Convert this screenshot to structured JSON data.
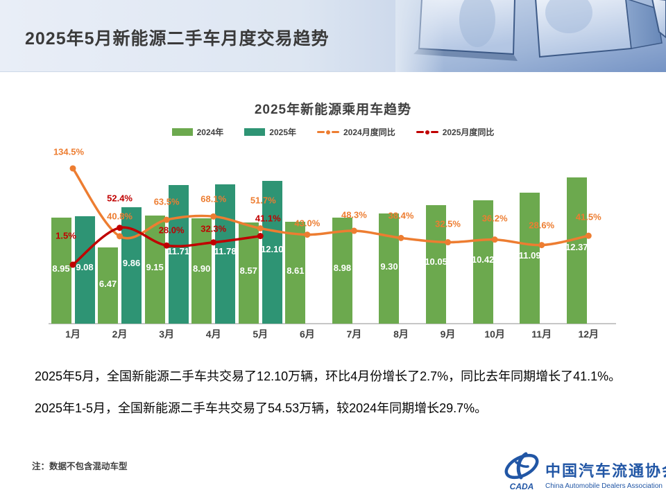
{
  "header": {
    "title": "2025年5月新能源二手车月度交易趋势"
  },
  "chart_data": {
    "type": "combo-bar-line",
    "title": "2025年新能源乘用车趋势",
    "categories": [
      "1月",
      "2月",
      "3月",
      "4月",
      "5月",
      "6月",
      "7月",
      "8月",
      "9月",
      "10月",
      "11月",
      "12月"
    ],
    "series": [
      {
        "name": "2024年",
        "type": "bar",
        "color": "#6CA94E",
        "values": [
          8.95,
          6.47,
          9.15,
          8.9,
          8.57,
          8.61,
          8.98,
          9.3,
          10.05,
          10.42,
          11.09,
          12.37
        ]
      },
      {
        "name": "2025年",
        "type": "bar",
        "color": "#2E9474",
        "values": [
          9.08,
          9.86,
          11.71,
          11.78,
          12.1,
          null,
          null,
          null,
          null,
          null,
          null,
          null
        ]
      },
      {
        "name": "2024月度同比",
        "type": "line",
        "color": "#ED7D31",
        "unit": "%",
        "values": [
          134.5,
          40.8,
          63.5,
          68.1,
          51.7,
          43.0,
          48.3,
          38.4,
          32.5,
          36.2,
          28.6,
          41.5
        ]
      },
      {
        "name": "2025月度同比",
        "type": "line",
        "color": "#C00000",
        "unit": "%",
        "values": [
          1.5,
          52.4,
          28.0,
          32.3,
          41.1,
          null,
          null,
          null,
          null,
          null,
          null,
          null
        ]
      }
    ],
    "legend_position": "top",
    "grid": false,
    "value_label_decimals": 2,
    "pct_label_decimals": 1
  },
  "body": {
    "paragraph1": "2025年5月，全国新能源二手车共交易了12.10万辆，环比4月份增长了2.7%，同比去年同期增长了41.1%。",
    "paragraph2": "2025年1-5月，全国新能源二手车共交易了54.53万辆，较2024年同期增长29.7%。"
  },
  "note": "注：数据不包含混动车型",
  "logo": {
    "acronym": "CADA",
    "name_cn": "中国汽车流通协会",
    "name_en": "China Automobile Dealers Association",
    "color": "#2156A5"
  }
}
